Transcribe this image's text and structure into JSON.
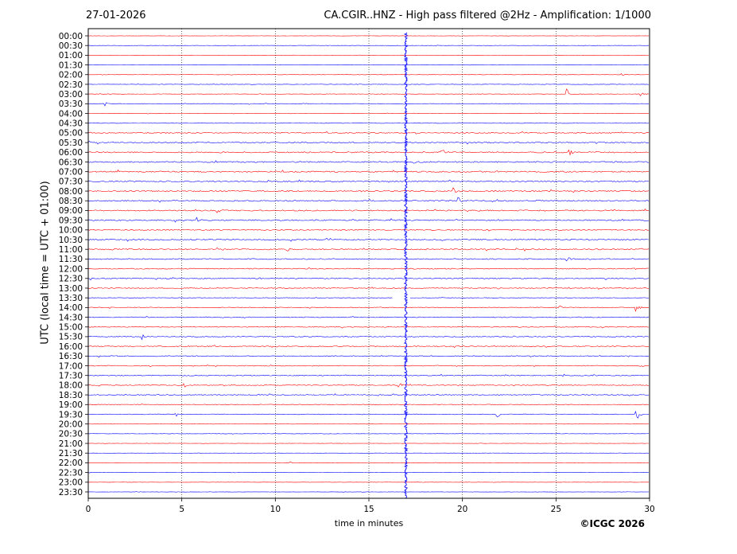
{
  "header": {
    "date": "27-01-2026",
    "title": "CA.CGIR..HNZ - High pass filtered @2Hz - Amplification: 1/1000"
  },
  "footer": {
    "credit": "©ICGC 2026"
  },
  "chart_data": {
    "type": "line",
    "title": "CA.CGIR..HNZ - High pass filtered @2Hz - Amplification: 1/1000",
    "xlabel": "time in minutes",
    "ylabel": "UTC (local time = UTC + 01:00)",
    "xlim": [
      0,
      30
    ],
    "x_ticks": [
      0,
      5,
      10,
      15,
      20,
      25,
      30
    ],
    "vertical_gridlines_at": [
      5,
      10,
      15,
      20,
      25
    ],
    "gridline_style": "dotted",
    "row_labels": [
      "00:00",
      "00:30",
      "01:00",
      "01:30",
      "02:00",
      "02:30",
      "03:00",
      "03:30",
      "04:00",
      "04:30",
      "05:00",
      "05:30",
      "06:00",
      "06:30",
      "07:00",
      "07:30",
      "08:00",
      "08:30",
      "09:00",
      "09:30",
      "10:00",
      "10:30",
      "11:00",
      "11:30",
      "12:00",
      "12:30",
      "13:00",
      "13:30",
      "14:00",
      "14:30",
      "15:00",
      "15:30",
      "16:00",
      "16:30",
      "17:00",
      "17:30",
      "18:00",
      "18:30",
      "19:00",
      "19:30",
      "20:00",
      "20:30",
      "21:00",
      "21:30",
      "22:00",
      "22:30",
      "23:00",
      "23:30"
    ],
    "trace_colors": [
      "#ff0000",
      "#0000ff"
    ],
    "noise_level": [
      0.15,
      0.2,
      0.15,
      0.15,
      0.2,
      0.25,
      0.25,
      0.3,
      0.2,
      0.25,
      0.6,
      0.65,
      0.7,
      0.75,
      0.75,
      0.7,
      0.75,
      0.7,
      0.7,
      0.7,
      0.65,
      0.7,
      0.7,
      0.6,
      0.6,
      0.6,
      0.5,
      0.3,
      0.5,
      0.5,
      0.5,
      0.55,
      0.55,
      0.5,
      0.5,
      0.55,
      0.5,
      0.5,
      0.4,
      0.4,
      0.2,
      0.2,
      0.15,
      0.15,
      0.15,
      0.15,
      0.15,
      0.15
    ],
    "continuous_disturbance": {
      "start_minute": 16.9,
      "end_minute": 17.05,
      "from_row": "00:00",
      "to_row": "23:30"
    },
    "data_gap": {
      "row": "13:30",
      "start_minute": 16.3,
      "end_minute": 17.2
    },
    "events": [
      {
        "row": "02:00",
        "minute": 28.5,
        "amplitude": 3
      },
      {
        "row": "03:00",
        "minute": 25.6,
        "amplitude": 7
      },
      {
        "row": "03:00",
        "minute": 29.5,
        "amplitude": 4
      },
      {
        "row": "03:30",
        "minute": 0.9,
        "amplitude": 4
      },
      {
        "row": "06:00",
        "minute": 18.9,
        "amplitude": 5
      },
      {
        "row": "06:00",
        "minute": 25.7,
        "amplitude": 8
      },
      {
        "row": "08:00",
        "minute": 19.5,
        "amplitude": 6
      },
      {
        "row": "08:30",
        "minute": 19.8,
        "amplitude": 5
      },
      {
        "row": "09:00",
        "minute": 6.9,
        "amplitude": 4
      },
      {
        "row": "09:30",
        "minute": 4.4,
        "amplitude": 4
      },
      {
        "row": "09:30",
        "minute": 5.8,
        "amplitude": 4
      },
      {
        "row": "11:00",
        "minute": 10.6,
        "amplitude": 4
      },
      {
        "row": "11:30",
        "minute": 25.6,
        "amplitude": 4
      },
      {
        "row": "12:30",
        "minute": 0.1,
        "amplitude": 4
      },
      {
        "row": "14:00",
        "minute": 25.2,
        "amplitude": 4
      },
      {
        "row": "14:00",
        "minute": 29.3,
        "amplitude": 5
      },
      {
        "row": "15:30",
        "minute": 2.9,
        "amplitude": 4
      },
      {
        "row": "18:00",
        "minute": 5.1,
        "amplitude": 5
      },
      {
        "row": "18:00",
        "minute": 16.6,
        "amplitude": 5
      },
      {
        "row": "19:30",
        "minute": 4.7,
        "amplitude": 4
      },
      {
        "row": "19:30",
        "minute": 21.9,
        "amplitude": 4
      },
      {
        "row": "19:30",
        "minute": 29.3,
        "amplitude": 11
      },
      {
        "row": "22:00",
        "minute": 10.7,
        "amplitude": 3
      }
    ]
  }
}
